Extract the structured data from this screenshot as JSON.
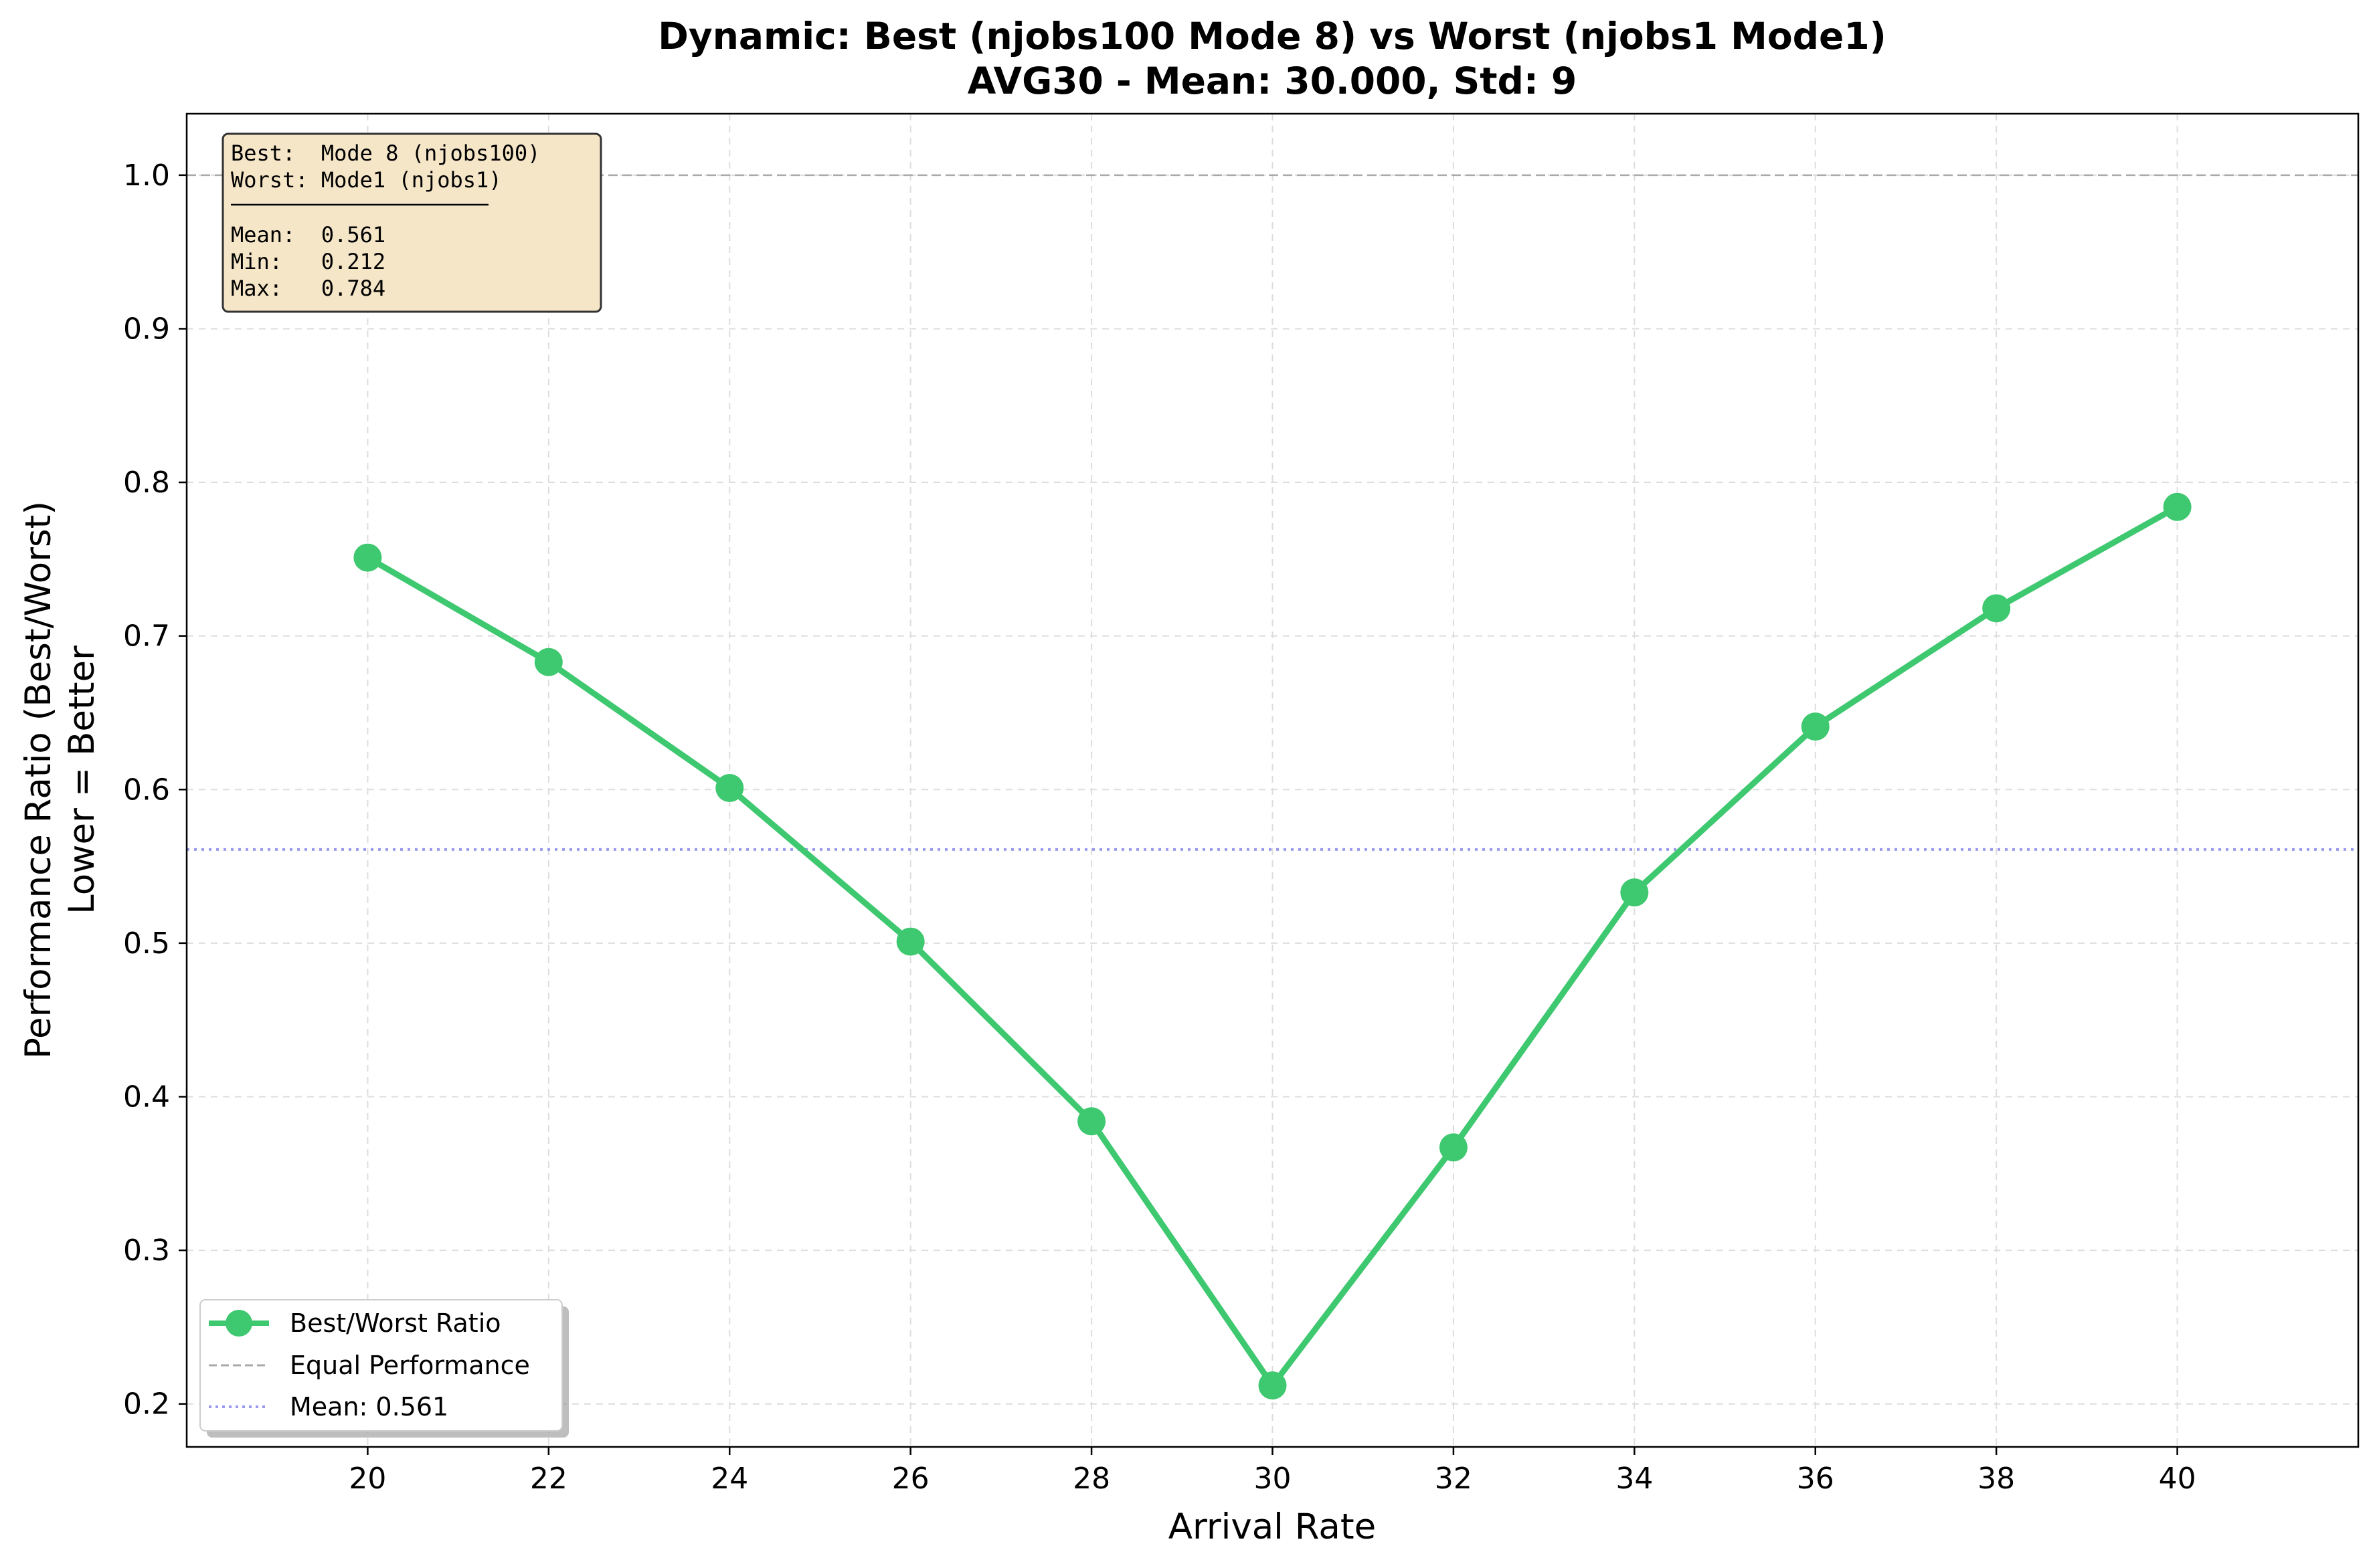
{
  "chart_data": {
    "type": "line",
    "title_line1": "Dynamic: Best (njobs100 Mode 8) vs Worst (njobs1 Mode1)",
    "title_line2": "AVG30 - Mean: 30.000, Std: 9",
    "xlabel": "Arrival Rate",
    "ylabel_line1": "Performance Ratio (Best/Worst)",
    "ylabel_line2": "Lower = Better",
    "xlim": [
      18,
      42
    ],
    "ylim": [
      0.172,
      1.04
    ],
    "xticks": [
      "20",
      "22",
      "24",
      "26",
      "28",
      "30",
      "32",
      "34",
      "36",
      "38",
      "40"
    ],
    "yticks": [
      "0.2",
      "0.3",
      "0.4",
      "0.5",
      "0.6",
      "0.7",
      "0.8",
      "0.9",
      "1.0"
    ],
    "grid": true,
    "series": [
      {
        "name": "Best/Worst Ratio",
        "color": "#3ec86f",
        "x": [
          20,
          22,
          24,
          26,
          28,
          30,
          32,
          34,
          36,
          38,
          40
        ],
        "y": [
          0.751,
          0.683,
          0.601,
          0.501,
          0.384,
          0.212,
          0.367,
          0.533,
          0.641,
          0.718,
          0.784
        ]
      }
    ],
    "reference_lines": [
      {
        "name": "Equal Performance",
        "y": 1.0,
        "style": "dashed",
        "color": "#aaaaaa"
      },
      {
        "name": "Mean: 0.561",
        "y": 0.561,
        "style": "dotted",
        "color": "#9999ee"
      }
    ],
    "legend": {
      "placement": "lower-left",
      "entries": [
        "Best/Worst Ratio",
        "Equal Performance",
        "Mean: 0.561"
      ]
    },
    "stats_box": {
      "placement": "top-left",
      "background": "#f5e6c8",
      "lines": [
        "Best:  Mode 8 (njobs100)",
        "Worst: Mode1 (njobs1)",
        "",
        "Mean:  0.561",
        "Min:   0.212",
        "Max:   0.784"
      ]
    }
  }
}
